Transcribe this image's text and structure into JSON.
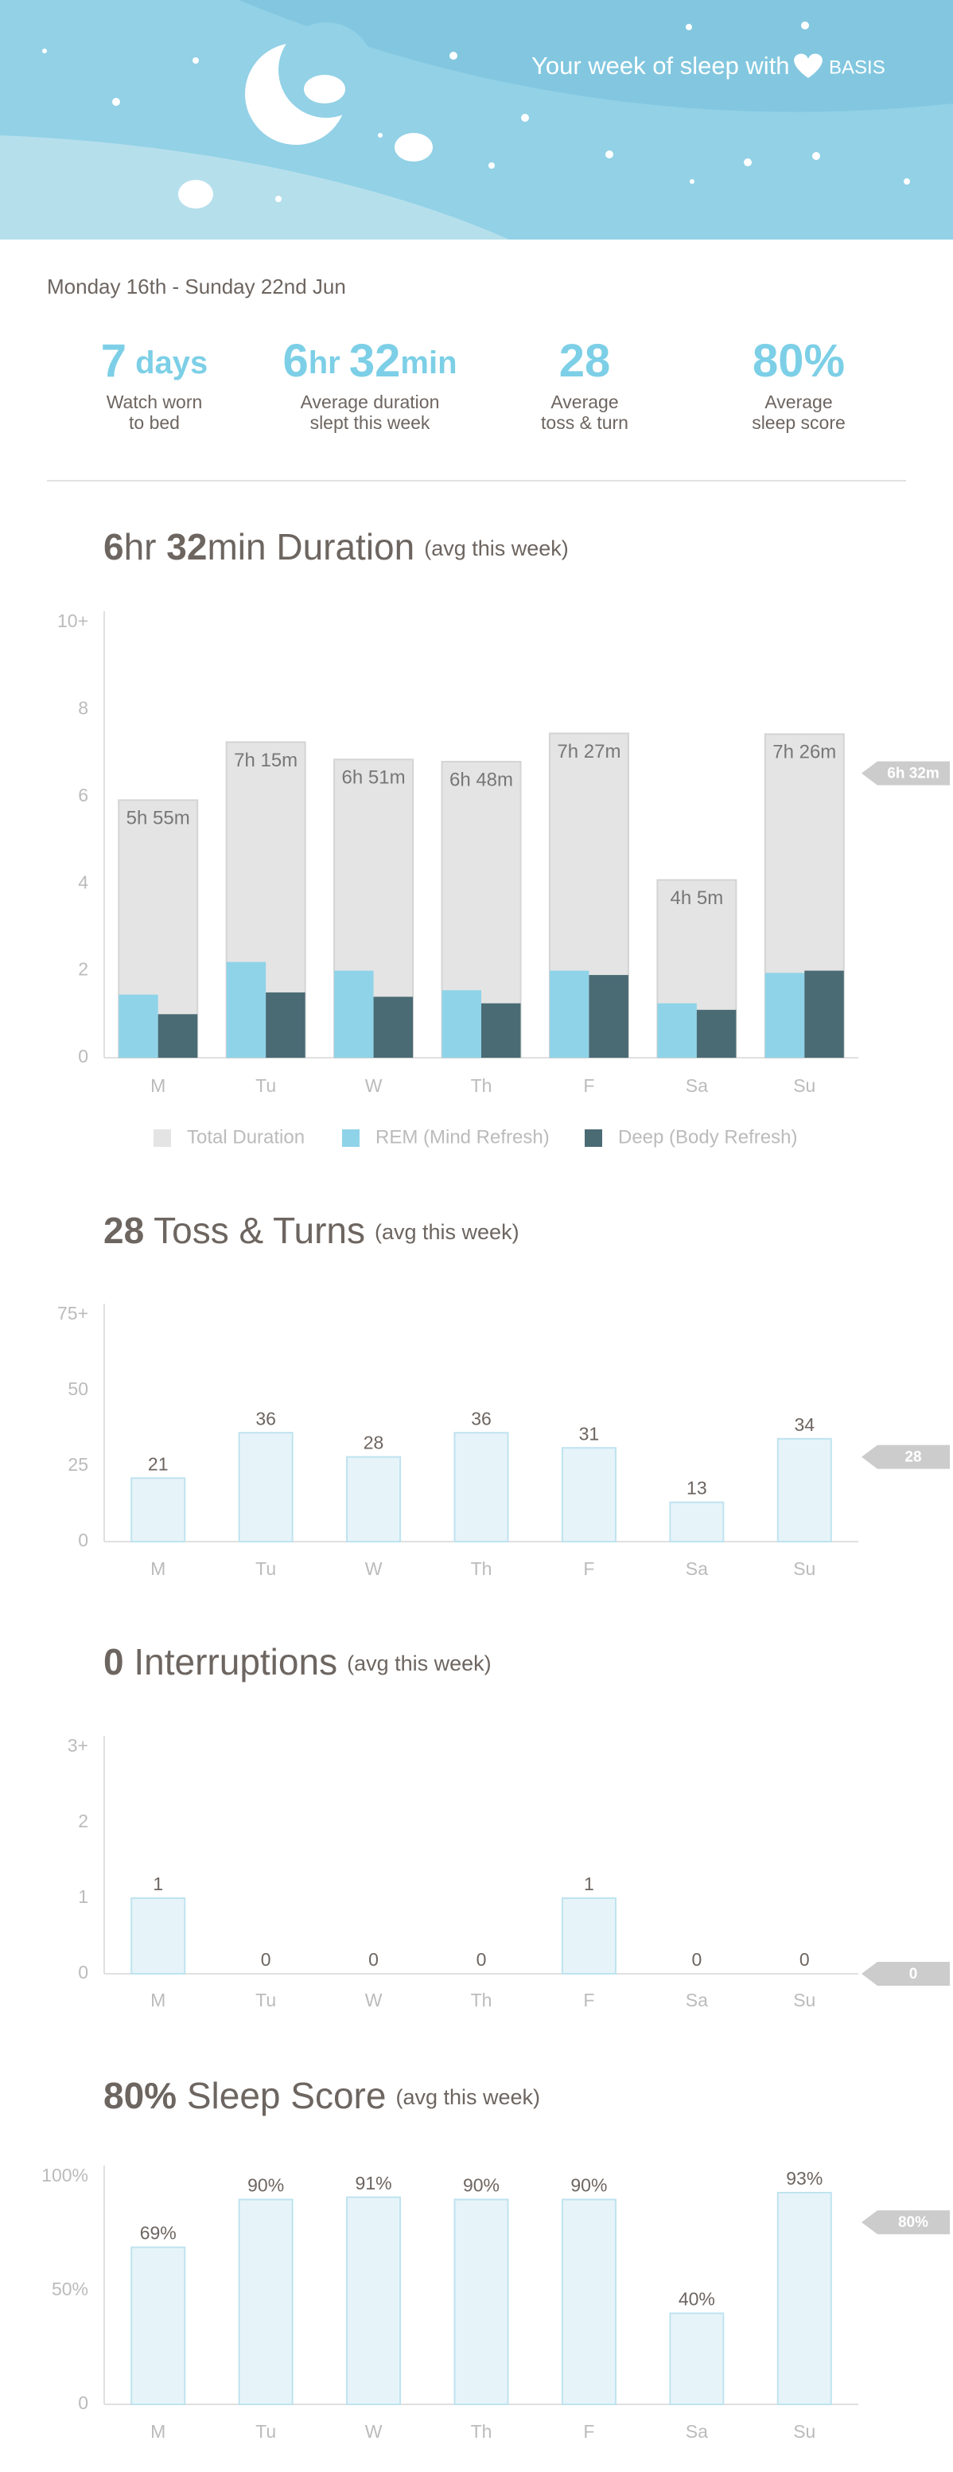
{
  "header": {
    "title": "Your week of sleep with",
    "brand": "BASIS"
  },
  "date_range": "Monday 16th - Sunday 22nd Jun",
  "summary": [
    {
      "value_parts": [
        "7",
        " days"
      ],
      "label_lines": [
        "Watch worn",
        "to bed"
      ]
    },
    {
      "value_parts": [
        "6",
        "hr ",
        "32",
        "min"
      ],
      "label_lines": [
        "Average duration",
        "slept this week"
      ]
    },
    {
      "value_parts": [
        "28"
      ],
      "label_lines": [
        "Average",
        "toss & turn"
      ]
    },
    {
      "value_parts": [
        "80%"
      ],
      "label_lines": [
        "Average",
        "sleep score"
      ]
    }
  ],
  "chart_data": [
    {
      "type": "bar",
      "title_parts": [
        "6",
        "hr ",
        "32",
        "min Duration"
      ],
      "subtitle": "(avg this week)",
      "categories": [
        "M",
        "Tu",
        "W",
        "Th",
        "F",
        "Sa",
        "Su"
      ],
      "series": [
        {
          "name": "Total Duration",
          "color": "#e4e4e4",
          "values": [
            5.9167,
            7.25,
            6.85,
            6.8,
            7.45,
            4.0833,
            7.4333
          ],
          "value_labels": [
            "5h 55m",
            "7h 15m",
            "6h 51m",
            "6h 48m",
            "7h 27m",
            "4h 5m",
            "7h 26m"
          ]
        },
        {
          "name": "REM (Mind Refresh)",
          "color": "#8fd3e8",
          "values": [
            1.45,
            2.2,
            2.0,
            1.55,
            2.0,
            1.25,
            1.95
          ]
        },
        {
          "name": "Deep (Body Refresh)",
          "color": "#4a6b74",
          "values": [
            1.0,
            1.5,
            1.4,
            1.25,
            1.9,
            1.1,
            2.0
          ]
        }
      ],
      "ylim": [
        0,
        10
      ],
      "yticks": [
        0,
        2,
        4,
        6,
        8,
        {
          "value": 10,
          "label": "10+"
        }
      ],
      "average": {
        "value": 6.5333,
        "label": "6h 32m"
      }
    },
    {
      "type": "bar",
      "title_parts": [
        "28",
        " Toss & Turns"
      ],
      "subtitle": "(avg this week)",
      "categories": [
        "M",
        "Tu",
        "W",
        "Th",
        "F",
        "Sa",
        "Su"
      ],
      "values": [
        21,
        36,
        28,
        36,
        31,
        13,
        34
      ],
      "color": "#e6f4f9",
      "ylim": [
        0,
        75
      ],
      "yticks": [
        0,
        25,
        50,
        {
          "value": 75,
          "label": "75+"
        }
      ],
      "average": {
        "value": 28,
        "label": "28"
      }
    },
    {
      "type": "bar",
      "title_parts": [
        "0",
        " Interruptions"
      ],
      "subtitle": "(avg this week)",
      "categories": [
        "M",
        "Tu",
        "W",
        "Th",
        "F",
        "Sa",
        "Su"
      ],
      "values": [
        1,
        0,
        0,
        0,
        1,
        0,
        0
      ],
      "color": "#e6f4f9",
      "ylim": [
        0,
        3
      ],
      "yticks": [
        0,
        1,
        2,
        {
          "value": 3,
          "label": "3+"
        }
      ],
      "average": {
        "value": 0,
        "label": "0"
      }
    },
    {
      "type": "bar",
      "title_parts": [
        "80%",
        " Sleep Score"
      ],
      "subtitle": "(avg this week)",
      "categories": [
        "M",
        "Tu",
        "W",
        "Th",
        "F",
        "Sa",
        "Su"
      ],
      "values": [
        69,
        90,
        91,
        90,
        90,
        40,
        93
      ],
      "value_labels": [
        "69%",
        "90%",
        "91%",
        "90%",
        "90%",
        "40%",
        "93%"
      ],
      "color": "#e6f4f9",
      "ylim": [
        0,
        100
      ],
      "yticks": [
        0,
        {
          "value": 50,
          "label": "50%"
        },
        {
          "value": 100,
          "label": "100%"
        }
      ],
      "average": {
        "value": 80,
        "label": "80%"
      }
    }
  ]
}
